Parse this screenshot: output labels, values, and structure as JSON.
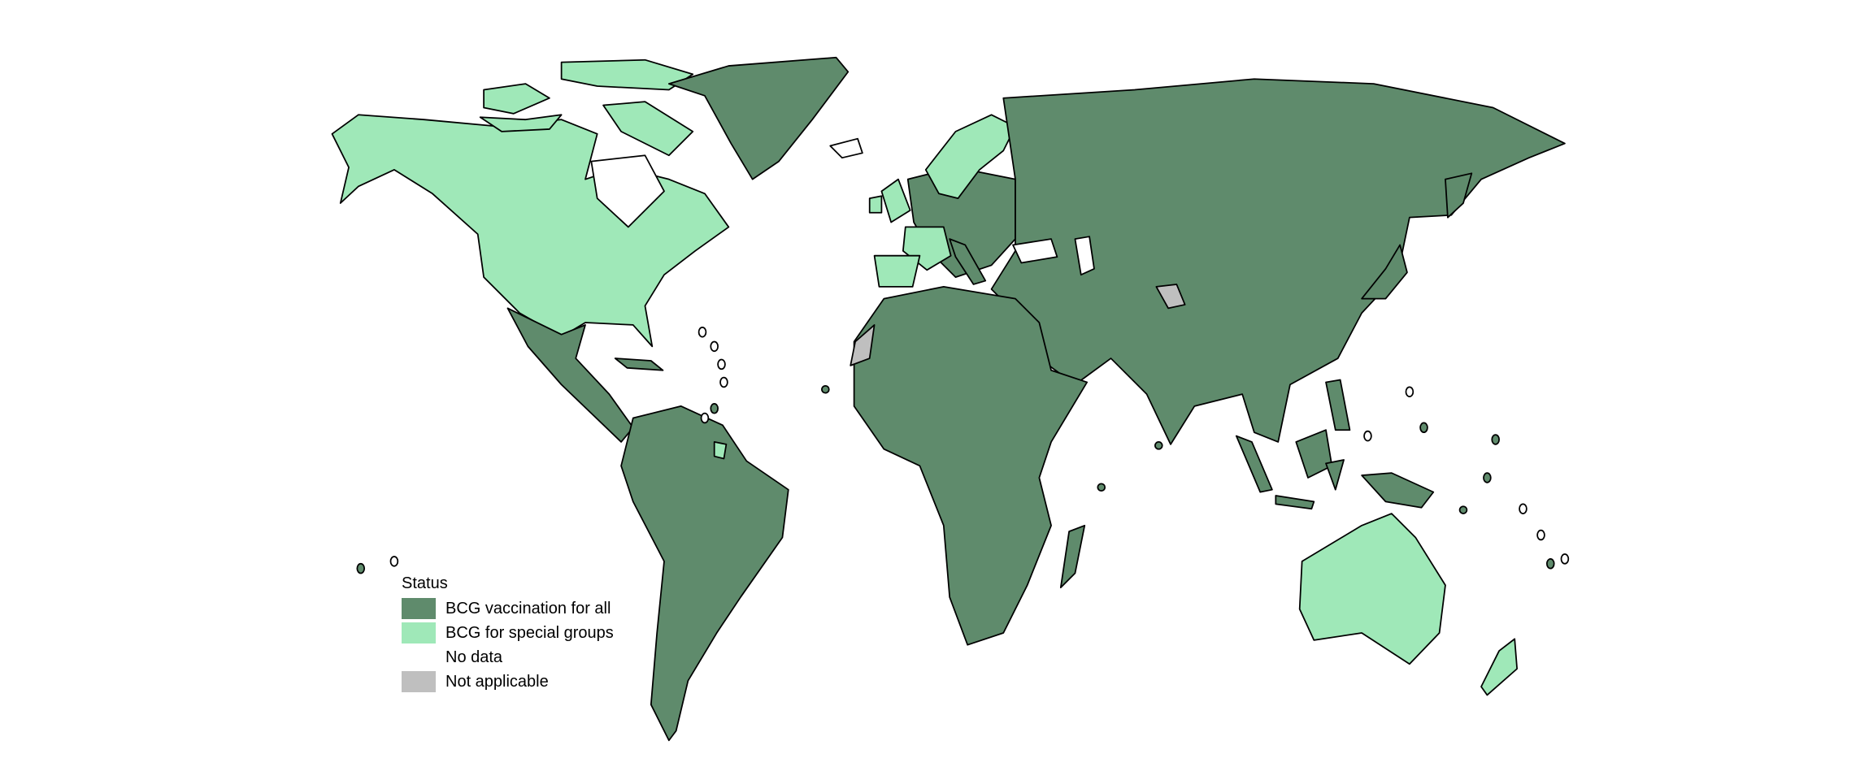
{
  "colors": {
    "vaccination_for_all": "#5f8b6c",
    "special_groups": "#9fe8b8",
    "no_data": "#ffffff",
    "not_applicable": "#bfbfbf"
  },
  "legend": {
    "title": "Status",
    "items": [
      {
        "label": "BCG vaccination for all",
        "color": "#5f8b6c"
      },
      {
        "label": "BCG for special groups",
        "color": "#9fe8b8"
      },
      {
        "label": "No data",
        "color": "#ffffff"
      },
      {
        "label": "Not applicable",
        "color": "#bfbfbf"
      }
    ]
  }
}
